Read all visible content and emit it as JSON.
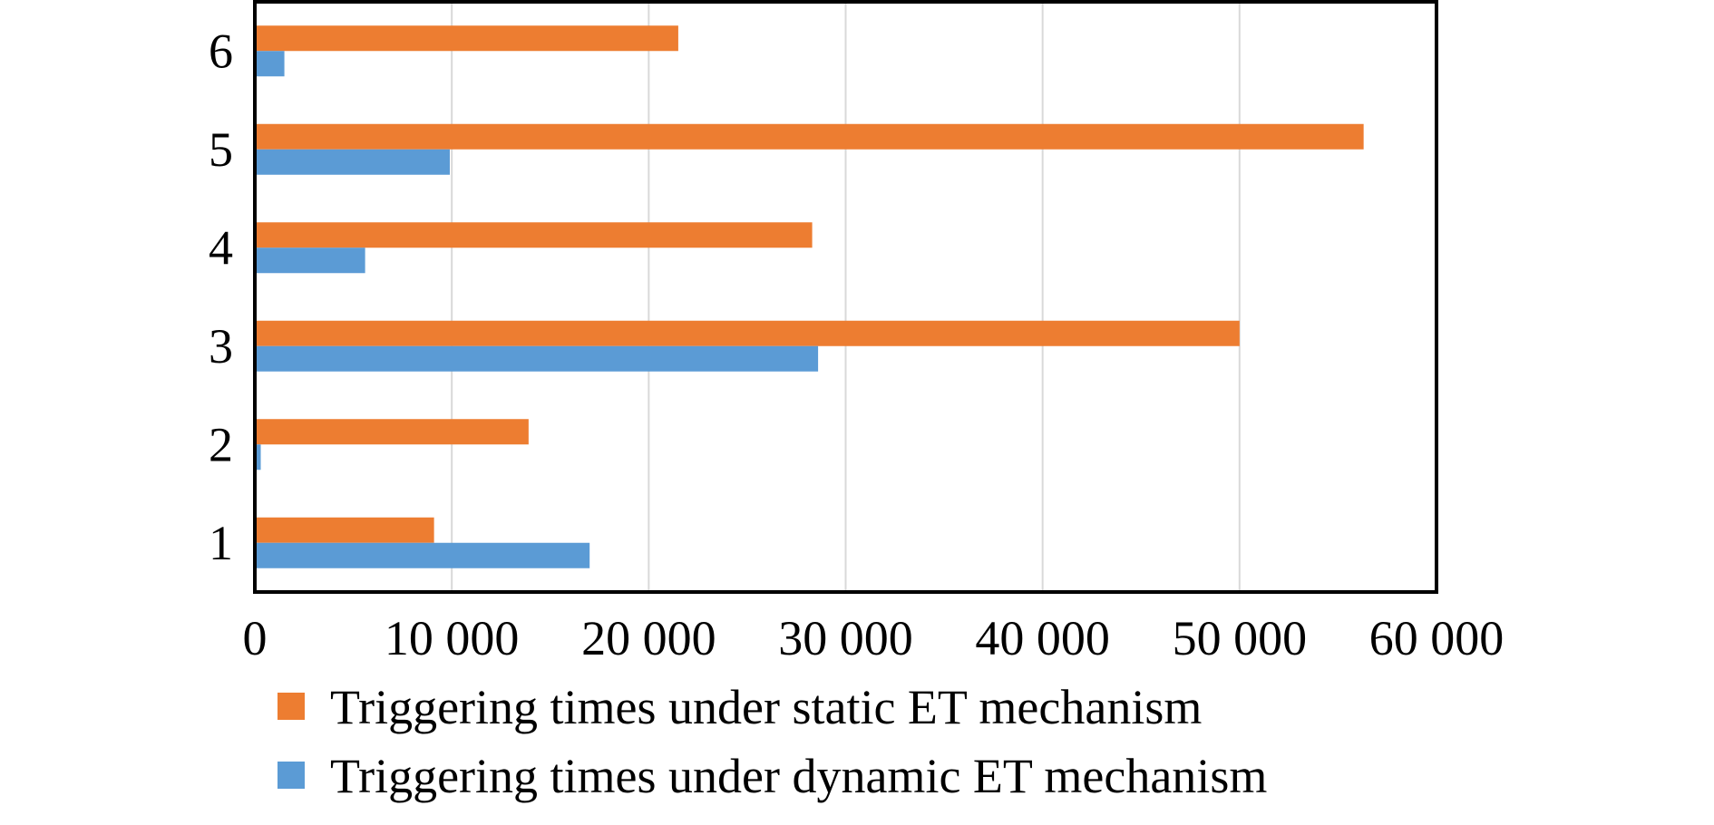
{
  "chart_data": {
    "type": "bar",
    "orientation": "horizontal",
    "categories": [
      "1",
      "2",
      "3",
      "4",
      "5",
      "6"
    ],
    "series": [
      {
        "name": "Triggering times under static ET mechanism",
        "color": "#ED7D31",
        "values": [
          9100,
          13900,
          50000,
          28300,
          56300,
          21500
        ]
      },
      {
        "name": "Triggering times under dynamic ET mechanism",
        "color": "#5B9BD5",
        "values": [
          17000,
          300,
          28600,
          5600,
          9900,
          1500
        ]
      }
    ],
    "xlim": [
      0,
      60000
    ],
    "xticks": [
      0,
      10000,
      20000,
      30000,
      40000,
      50000,
      60000
    ],
    "xtick_labels": [
      "0",
      "10 000",
      "20 000",
      "30 000",
      "40 000",
      "50 000",
      "60 000"
    ],
    "grid": "vertical",
    "legend_placement": "bottom",
    "title": "",
    "xlabel": "",
    "ylabel": ""
  }
}
